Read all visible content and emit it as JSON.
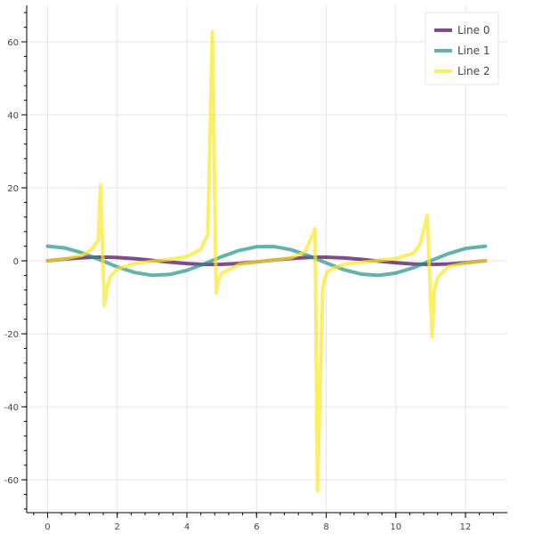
{
  "chart_data": {
    "type": "line",
    "title": "",
    "xlabel": "",
    "ylabel": "",
    "xlim": [
      -0.6,
      13.2
    ],
    "ylim": [
      -69,
      70
    ],
    "grid": true,
    "legend": {
      "position": "top-right"
    },
    "x_ticks": [
      0,
      2,
      4,
      6,
      8,
      10,
      12
    ],
    "y_ticks": [
      -60,
      -40,
      -20,
      0,
      20,
      40,
      60
    ],
    "series": [
      {
        "name": "Line 0",
        "color": "#440154",
        "function": "sin(x)",
        "x": [
          0,
          0.25,
          0.5,
          0.75,
          1.0,
          1.25,
          1.5,
          1.75,
          2.0,
          2.5,
          3.0,
          3.5,
          4.0,
          4.5,
          4.75,
          5.0,
          5.5,
          6.0,
          6.5,
          7.0,
          7.5,
          7.75,
          8.0,
          8.5,
          9.0,
          9.5,
          10.0,
          10.5,
          11.0,
          11.5,
          12.0,
          12.57
        ],
        "y": [
          0,
          0.25,
          0.48,
          0.68,
          0.84,
          0.95,
          1.0,
          0.98,
          0.91,
          0.6,
          0.14,
          -0.35,
          -0.76,
          -0.98,
          -1.0,
          -0.96,
          -0.71,
          -0.28,
          0.22,
          0.66,
          0.94,
          0.99,
          0.99,
          0.8,
          0.41,
          -0.08,
          -0.54,
          -0.88,
          -1.0,
          -0.88,
          -0.54,
          0
        ]
      },
      {
        "name": "Line 1",
        "color": "#21918c",
        "function": "4cos(x)",
        "x": [
          0,
          0.5,
          1.0,
          1.5,
          2.0,
          2.5,
          3.0,
          3.5,
          4.0,
          4.5,
          5.0,
          5.5,
          6.0,
          6.5,
          7.0,
          7.5,
          8.0,
          8.5,
          9.0,
          9.5,
          10.0,
          10.5,
          11.0,
          11.5,
          12.0,
          12.57
        ],
        "y": [
          4.0,
          3.51,
          2.16,
          0.28,
          -1.66,
          -3.2,
          -3.96,
          -3.75,
          -2.61,
          -0.84,
          1.13,
          2.84,
          3.84,
          3.9,
          3.02,
          1.39,
          -0.58,
          -2.41,
          -3.64,
          -3.99,
          -3.36,
          -1.91,
          0.02,
          1.94,
          3.38,
          4.0
        ]
      },
      {
        "name": "Line 2",
        "color": "#fde725",
        "function": "tan(x)",
        "x": [
          0,
          0.5,
          1.0,
          1.25,
          1.45,
          1.52,
          1.63,
          1.7,
          1.8,
          2.0,
          2.5,
          3.0,
          3.5,
          4.0,
          4.4,
          4.6,
          4.73,
          4.84,
          4.9,
          5.0,
          5.5,
          6.0,
          6.5,
          7.0,
          7.4,
          7.68,
          7.75,
          7.9,
          7.97,
          8.05,
          8.2,
          8.6,
          9.0,
          9.5,
          10.0,
          10.5,
          10.7,
          10.9,
          11.04,
          11.1,
          11.2,
          11.5,
          12.0,
          12.57
        ],
        "y": [
          0,
          0.55,
          1.56,
          3.0,
          5.5,
          20.7,
          -12.3,
          -7.7,
          -4.3,
          -2.2,
          -0.75,
          -0.14,
          0.37,
          1.16,
          3.1,
          7.3,
          62.8,
          -8.8,
          -5.2,
          -3.38,
          -1.0,
          -0.29,
          0.22,
          0.87,
          2.5,
          8.8,
          -63.0,
          -7.4,
          -4.4,
          -3.0,
          -2.0,
          -0.8,
          -0.45,
          0.08,
          0.65,
          2.0,
          4.6,
          12.4,
          -20.8,
          -8.3,
          -4.6,
          -1.6,
          -0.64,
          0
        ]
      }
    ]
  }
}
